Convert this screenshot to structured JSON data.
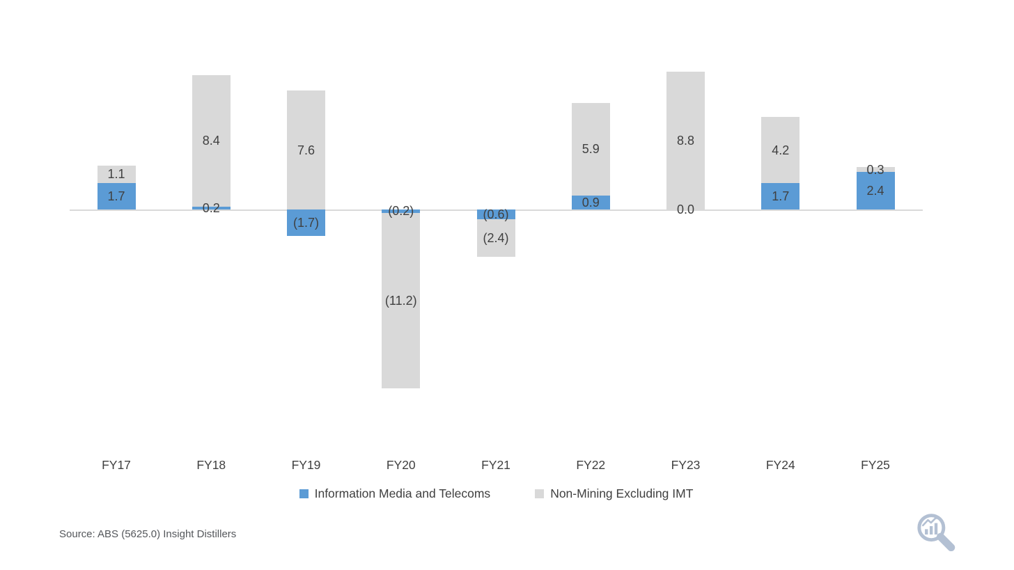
{
  "chart_data": {
    "type": "bar",
    "stacked": true,
    "grid": false,
    "legend_position": "bottom",
    "categories": [
      "FY17",
      "FY18",
      "FY19",
      "FY20",
      "FY21",
      "FY22",
      "FY23",
      "FY24",
      "FY25"
    ],
    "series": [
      {
        "name": "Information Media and Telecoms",
        "color": "#5B9BD5",
        "values": [
          1.7,
          0.2,
          -1.7,
          -0.2,
          -0.6,
          0.9,
          0.0,
          1.7,
          2.4
        ],
        "labels": [
          "1.7",
          "0.2",
          "(1.7)",
          "(0.2)",
          "(0.6)",
          "0.9",
          "0.0",
          "1.7",
          "2.4"
        ]
      },
      {
        "name": "Non-Mining Excluding IMT",
        "color": "#D9D9D9",
        "values": [
          1.1,
          8.4,
          7.6,
          -11.2,
          -2.4,
          5.9,
          8.8,
          4.2,
          0.3
        ],
        "labels": [
          "1.1",
          "8.4",
          "7.6",
          "(11.2)",
          "(2.4)",
          "5.9",
          "8.8",
          "4.2",
          "0.3"
        ]
      }
    ],
    "ylim": [
      -11.6,
      9.0
    ],
    "label_color": "#404040",
    "axis_line_color": "#d9d9d9"
  },
  "legend": {
    "items": [
      {
        "label": "Information Media and Telecoms",
        "color": "#5B9BD5"
      },
      {
        "label": "Non-Mining Excluding IMT",
        "color": "#D9D9D9"
      }
    ]
  },
  "footer": {
    "source": "Source: ABS (5625.0) Insight Distillers"
  },
  "branding": {
    "logo_icon": "magnifier-chart-icon",
    "logo_color": "#b3c0d3"
  }
}
